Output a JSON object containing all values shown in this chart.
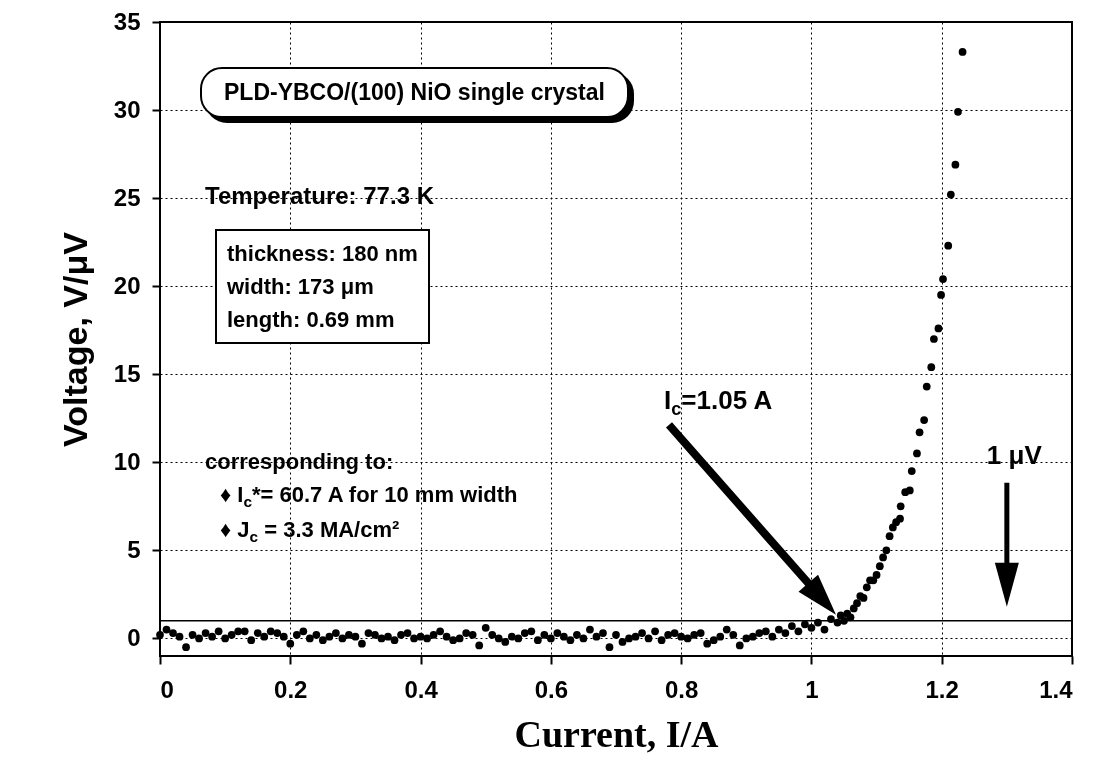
{
  "chart_data": {
    "type": "scatter",
    "title": "PLD-YBCO/(100) NiO single crystal",
    "xlabel": "Current, I/A",
    "ylabel": "Voltage, V/μV",
    "x": [
      0,
      0.01,
      0.02,
      0.03,
      0.04,
      0.05,
      0.06,
      0.07,
      0.08,
      0.09,
      0.1,
      0.11,
      0.12,
      0.13,
      0.14,
      0.15,
      0.16,
      0.17,
      0.18,
      0.19,
      0.2,
      0.21,
      0.22,
      0.23,
      0.24,
      0.25,
      0.26,
      0.27,
      0.28,
      0.29,
      0.3,
      0.31,
      0.32,
      0.33,
      0.34,
      0.35,
      0.36,
      0.37,
      0.38,
      0.39,
      0.4,
      0.41,
      0.42,
      0.43,
      0.44,
      0.45,
      0.46,
      0.47,
      0.48,
      0.49,
      0.5,
      0.51,
      0.52,
      0.53,
      0.54,
      0.55,
      0.56,
      0.57,
      0.58,
      0.59,
      0.6,
      0.61,
      0.62,
      0.63,
      0.64,
      0.65,
      0.66,
      0.67,
      0.68,
      0.69,
      0.7,
      0.71,
      0.72,
      0.73,
      0.74,
      0.75,
      0.76,
      0.77,
      0.78,
      0.79,
      0.8,
      0.81,
      0.82,
      0.83,
      0.84,
      0.85,
      0.86,
      0.87,
      0.88,
      0.89,
      0.9,
      0.91,
      0.92,
      0.93,
      0.94,
      0.95,
      0.96,
      0.97,
      0.98,
      0.99,
      1.0,
      1.01,
      1.02,
      1.03,
      1.04,
      1.045,
      1.05,
      1.055,
      1.06,
      1.065,
      1.07,
      1.075,
      1.08,
      1.085,
      1.09,
      1.095,
      1.1,
      1.105,
      1.11,
      1.115,
      1.12,
      1.125,
      1.13,
      1.136,
      1.137,
      1.144,
      1.151,
      1.154,
      1.162,
      1.166,
      1.173,
      1.177,
      1.184,
      1.188,
      1.195,
      1.199,
      1.202,
      1.21,
      1.214,
      1.221,
      1.225,
      1.232
    ],
    "values": [
      0.2,
      0.5,
      0.3,
      0.1,
      -0.5,
      0.2,
      0.0,
      0.3,
      0.1,
      0.4,
      0.0,
      0.2,
      0.4,
      0.4,
      -0.1,
      0.3,
      0.1,
      0.4,
      0.3,
      0.1,
      -0.3,
      0.2,
      0.4,
      0.0,
      0.2,
      -0.1,
      0.1,
      0.3,
      0.0,
      0.2,
      0.1,
      -0.3,
      0.3,
      0.2,
      0.0,
      0.1,
      -0.1,
      0.2,
      0.3,
      0.0,
      0.1,
      0.0,
      0.2,
      0.4,
      0.1,
      -0.1,
      0.0,
      0.3,
      0.2,
      -0.4,
      0.6,
      0.2,
      0.0,
      -0.2,
      0.1,
      0.0,
      0.3,
      0.4,
      -0.1,
      0.2,
      0.0,
      0.3,
      0.1,
      -0.1,
      0.2,
      0.0,
      0.5,
      0.1,
      0.3,
      -0.5,
      0.2,
      -0.2,
      0.0,
      0.1,
      0.3,
      0.0,
      0.4,
      -0.1,
      0.2,
      0.3,
      0.1,
      0.0,
      0.2,
      0.3,
      -0.3,
      -0.1,
      0.1,
      0.5,
      0.2,
      -0.4,
      0.0,
      0.1,
      0.3,
      0.4,
      0.1,
      0.5,
      0.3,
      0.7,
      0.4,
      0.8,
      0.6,
      0.9,
      0.5,
      1.1,
      0.9,
      1.3,
      1.0,
      1.4,
      1.2,
      1.7,
      2.0,
      2.4,
      2.3,
      2.9,
      3.3,
      3.3,
      3.6,
      4.1,
      4.6,
      5.0,
      5.8,
      6.3,
      6.6,
      6.8,
      7.5,
      8.3,
      8.4,
      9.5,
      10.5,
      11.7,
      12.4,
      14.3,
      15.4,
      17.0,
      17.6,
      19.5,
      20.4,
      22.3,
      25.2,
      26.9,
      29.9,
      33.3
    ],
    "color": "#000000",
    "marker": "circle",
    "xlim": [
      0,
      1.4
    ],
    "xticks": [
      0,
      0.2,
      0.4,
      0.6,
      0.8,
      1,
      1.2,
      1.4
    ],
    "ylim": [
      -1,
      35
    ],
    "yticks": [
      0,
      5,
      10,
      15,
      20,
      25,
      30,
      35
    ],
    "grid": true,
    "ref_lines": [
      {
        "axis": "y",
        "value": 1,
        "color": "#000000",
        "line_style": "solid"
      }
    ],
    "annotations": [
      "Temperature: 77.3 K",
      "thickness: 180 nm",
      "width: 173 μm",
      "length: 0.69 mm",
      "corresponding to:",
      "♦ I$_{c}$*= 60.7 A for 10 mm width",
      "♦ J$_{c}$ = 3.3 MA/cm²",
      "I$_{c}$=1.05 A",
      "1 μV"
    ]
  }
}
